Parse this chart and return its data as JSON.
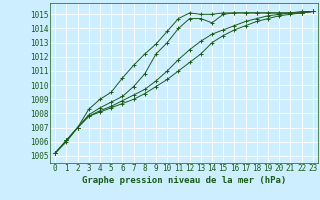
{
  "title": "Graphe pression niveau de la mer (hPa)",
  "background_color": "#cceeff",
  "grid_color": "#ffffff",
  "line_color": "#1a5c1a",
  "xlim": [
    -0.5,
    23.5
  ],
  "ylim": [
    1004.5,
    1015.8
  ],
  "xticks": [
    0,
    1,
    2,
    3,
    4,
    5,
    6,
    7,
    8,
    9,
    10,
    11,
    12,
    13,
    14,
    15,
    16,
    17,
    18,
    19,
    20,
    21,
    22,
    23
  ],
  "yticks": [
    1005,
    1006,
    1007,
    1008,
    1009,
    1010,
    1011,
    1012,
    1013,
    1014,
    1015
  ],
  "series": [
    [
      1005.2,
      1006.1,
      1007.0,
      1007.9,
      1008.4,
      1008.8,
      1009.2,
      1009.9,
      1010.8,
      1012.2,
      1013.0,
      1014.0,
      1014.7,
      1014.7,
      1014.4,
      1015.0,
      1015.1,
      1015.1,
      1015.1,
      1015.1,
      1015.1,
      1015.1,
      1015.1,
      1015.2
    ],
    [
      1005.2,
      1006.1,
      1007.0,
      1007.8,
      1008.2,
      1008.5,
      1008.9,
      1009.3,
      1009.7,
      1010.3,
      1011.0,
      1011.8,
      1012.5,
      1013.1,
      1013.6,
      1013.9,
      1014.2,
      1014.5,
      1014.7,
      1014.9,
      1015.0,
      1015.1,
      1015.1,
      1015.2
    ],
    [
      1005.2,
      1006.0,
      1007.0,
      1007.8,
      1008.1,
      1008.4,
      1008.7,
      1009.0,
      1009.4,
      1009.9,
      1010.4,
      1011.0,
      1011.6,
      1012.2,
      1013.0,
      1013.5,
      1013.9,
      1014.2,
      1014.5,
      1014.7,
      1014.9,
      1015.0,
      1015.1,
      1015.2
    ],
    [
      1005.2,
      1006.1,
      1007.0,
      1008.3,
      1009.0,
      1009.5,
      1010.5,
      1011.4,
      1012.2,
      1012.9,
      1013.8,
      1014.7,
      1015.1,
      1015.0,
      1015.0,
      1015.1,
      1015.1,
      1015.1,
      1015.1,
      1015.1,
      1015.1,
      1015.1,
      1015.2,
      1015.2
    ]
  ],
  "marker": "+",
  "markersize": 3,
  "linewidth": 0.7,
  "tick_fontsize": 5.5,
  "label_fontsize": 6.5
}
